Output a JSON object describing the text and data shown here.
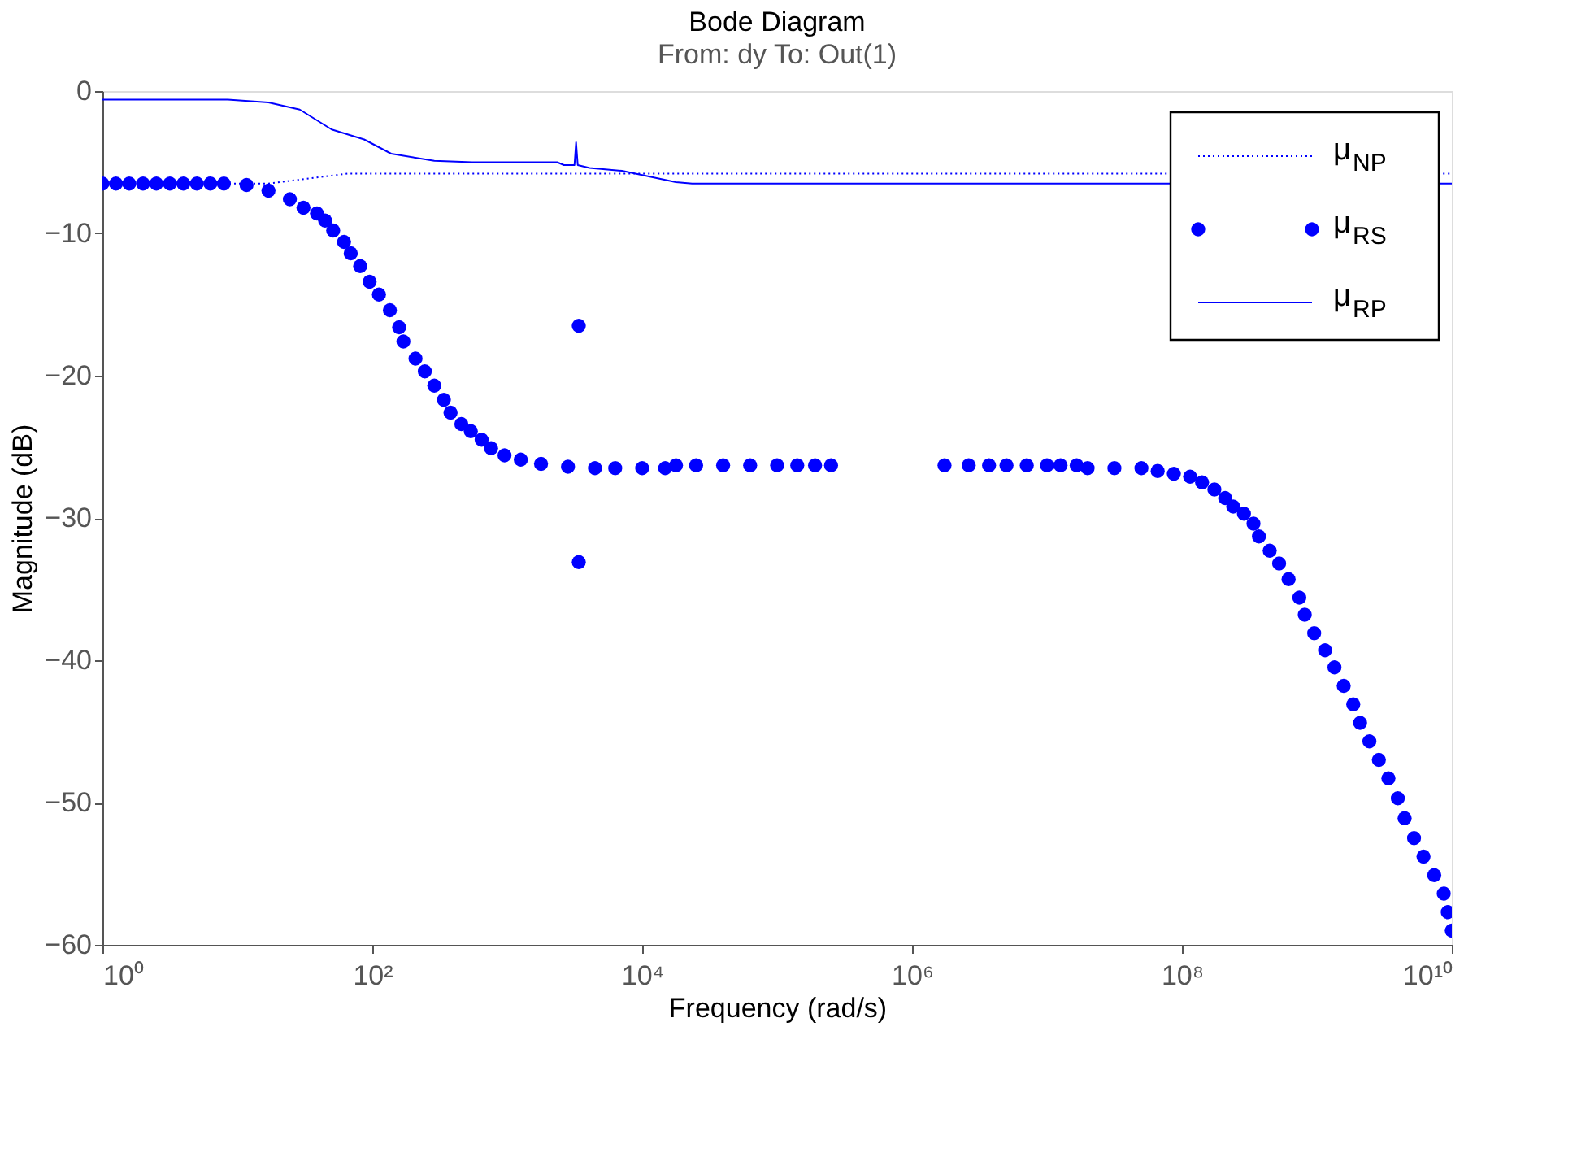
{
  "chart_data": {
    "type": "line",
    "title": "Bode Diagram",
    "subtitle": "From: dy  To: Out(1)",
    "xlabel": "Frequency  (rad/s)",
    "ylabel": "Magnitude (dB)",
    "log": "x",
    "xlim": [
      1,
      10000000000
    ],
    "xticks": [
      {
        "value": 1,
        "label": "10⁰"
      },
      {
        "value": 100,
        "label": "10²"
      },
      {
        "value": 10000,
        "label": "10⁴"
      },
      {
        "value": 1000000,
        "label": "10⁶"
      },
      {
        "value": 100000000,
        "label": "10⁸"
      },
      {
        "value": 10000000000,
        "label": "10¹⁰"
      }
    ],
    "ylim": [
      -60,
      0
    ],
    "yticks": [
      -60,
      -50,
      -40,
      -30,
      -20,
      -10,
      0
    ],
    "grid": false,
    "legend": "top right",
    "series": [
      {
        "name": "μ$_{NP}$",
        "type": "line",
        "line_style": "dotted",
        "color": "#0000ff",
        "x": [
          1,
          17,
          66,
          10000000000
        ],
        "values": [
          -6.5,
          -6.5,
          -5.8,
          -5.8
        ]
      },
      {
        "name": "μ$_{RS}$",
        "type": "scatter",
        "marker": "circle",
        "color": "#0000ff",
        "x": [
          1,
          1.26,
          1.58,
          2,
          2.51,
          3.16,
          3.98,
          5.01,
          6.31,
          7.94,
          11.7,
          17,
          24.5,
          30.9,
          38.9,
          44.7,
          51.3,
          61.7,
          69.2,
          81.3,
          95.5,
          112,
          135,
          158,
          170,
          209,
          245,
          288,
          339,
          380,
          457,
          537,
          646,
          759,
          955,
          1260,
          1780,
          2820,
          4470,
          6310,
          10000,
          14800,
          17800,
          25100,
          39800,
          63100,
          100000,
          141000,
          191000,
          251000,
          3390,
          3390,
          1740000,
          2630000,
          3720000,
          5010000,
          7080000,
          10000000,
          12600000,
          16600000,
          20000000,
          31600000,
          50100000,
          66100000,
          87100000,
          115000000,
          141000000,
          174000000,
          209000000,
          240000000,
          288000000,
          339000000,
          372000000,
          447000000,
          525000000,
          617000000,
          741000000,
          813000000,
          955000000,
          1150000000,
          1350000000,
          1580000000,
          1860000000,
          2090000000,
          2450000000,
          2880000000,
          3390000000,
          3980000000,
          4470000000,
          5250000000,
          6170000000,
          7410000000,
          8710000000,
          9330000000,
          10000000000
        ],
        "values": [
          -6.5,
          -6.5,
          -6.5,
          -6.5,
          -6.5,
          -6.5,
          -6.5,
          -6.5,
          -6.5,
          -6.5,
          -6.6,
          -7.0,
          -7.6,
          -8.2,
          -8.6,
          -9.1,
          -9.8,
          -10.6,
          -11.4,
          -12.3,
          -13.4,
          -14.3,
          -15.4,
          -16.6,
          -17.6,
          -18.8,
          -19.7,
          -20.7,
          -21.7,
          -22.6,
          -23.4,
          -23.9,
          -24.5,
          -25.1,
          -25.6,
          -25.9,
          -26.2,
          -26.4,
          -26.5,
          -26.5,
          -26.5,
          -26.5,
          -26.3,
          -26.3,
          -26.3,
          -26.3,
          -26.3,
          -26.3,
          -26.3,
          -26.3,
          -16.5,
          -33.1,
          -26.3,
          -26.3,
          -26.3,
          -26.3,
          -26.3,
          -26.3,
          -26.3,
          -26.3,
          -26.5,
          -26.5,
          -26.5,
          -26.7,
          -26.9,
          -27.1,
          -27.5,
          -28.0,
          -28.6,
          -29.2,
          -29.7,
          -30.4,
          -31.3,
          -32.3,
          -33.2,
          -34.3,
          -35.6,
          -36.8,
          -38.1,
          -39.3,
          -40.5,
          -41.8,
          -43.1,
          -44.4,
          -45.7,
          -47.0,
          -48.3,
          -49.7,
          -51.1,
          -52.5,
          -53.8,
          -55.1,
          -56.4,
          -57.7,
          -59.0
        ]
      },
      {
        "name": "μ$_{RP}$",
        "type": "line",
        "line_style": "solid",
        "color": "#0000ff",
        "x": [
          1,
          8.5,
          17,
          29,
          50,
          87,
          138,
          288,
          550,
          2344,
          2630,
          3150,
          3236,
          3330,
          4074,
          7079,
          17783,
          23442,
          10000000000
        ],
        "values": [
          -0.6,
          -0.6,
          -0.8,
          -1.3,
          -2.7,
          -3.4,
          -4.4,
          -4.9,
          -5.0,
          -5.0,
          -5.2,
          -5.2,
          -3.6,
          -5.2,
          -5.4,
          -5.6,
          -6.4,
          -6.5,
          -6.5
        ]
      }
    ]
  }
}
